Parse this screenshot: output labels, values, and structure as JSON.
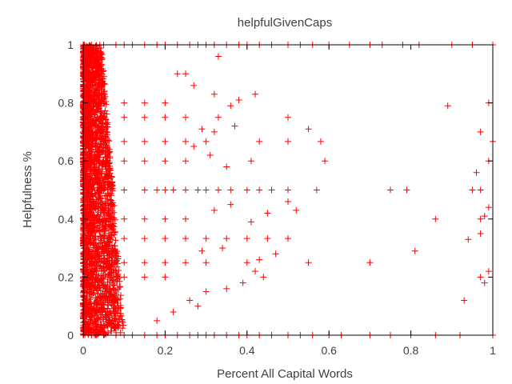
{
  "chart_data": {
    "type": "scatter",
    "title": "helpfulGivenCaps",
    "xlabel": "Percent All Capital Words",
    "ylabel": "Helpfulness %",
    "xlim": [
      0,
      1
    ],
    "ylim": [
      0,
      1
    ],
    "x_ticks": [
      0,
      0.2,
      0.4,
      0.6,
      0.8,
      1
    ],
    "y_ticks": [
      0,
      0.2,
      0.4,
      0.6,
      0.8,
      1
    ],
    "x_tick_labels": [
      "0",
      "0.2",
      "0.4",
      "0.6",
      "0.8",
      "1"
    ],
    "y_tick_labels": [
      "0",
      "0.2",
      "0.4",
      "0.6",
      "0.8",
      "1"
    ],
    "grid": false,
    "legend": "none",
    "marker": "plus",
    "color": "#ff0000",
    "series": [
      {
        "points": [
          [
            0.0,
            1.0
          ],
          [
            0.02,
            1.0
          ],
          [
            0.05,
            1.0
          ],
          [
            0.08,
            1.0
          ],
          [
            0.1,
            1.0
          ],
          [
            0.12,
            1.0
          ],
          [
            0.15,
            1.0
          ],
          [
            0.18,
            1.0
          ],
          [
            0.2,
            1.0
          ],
          [
            0.23,
            1.0
          ],
          [
            0.26,
            1.0
          ],
          [
            0.28,
            1.0
          ],
          [
            0.3,
            1.0
          ],
          [
            0.32,
            1.0
          ],
          [
            0.35,
            1.0
          ],
          [
            0.38,
            1.0
          ],
          [
            0.4,
            1.0
          ],
          [
            0.43,
            1.0
          ],
          [
            0.46,
            1.0
          ],
          [
            0.5,
            1.0
          ],
          [
            0.53,
            1.0
          ],
          [
            0.56,
            1.0
          ],
          [
            0.6,
            1.0
          ],
          [
            0.65,
            1.0
          ],
          [
            0.7,
            1.0
          ],
          [
            0.73,
            1.0
          ],
          [
            0.78,
            1.0
          ],
          [
            0.82,
            1.0
          ],
          [
            0.9,
            1.0
          ],
          [
            0.95,
            1.0
          ],
          [
            1.0,
            1.0
          ],
          [
            0.0,
            0.0
          ],
          [
            0.02,
            0.0
          ],
          [
            0.05,
            0.0
          ],
          [
            0.08,
            0.0
          ],
          [
            0.1,
            0.0
          ],
          [
            0.12,
            0.0
          ],
          [
            0.15,
            0.0
          ],
          [
            0.18,
            0.0
          ],
          [
            0.2,
            0.0
          ],
          [
            0.23,
            0.0
          ],
          [
            0.26,
            0.0
          ],
          [
            0.28,
            0.0
          ],
          [
            0.3,
            0.0
          ],
          [
            0.32,
            0.0
          ],
          [
            0.35,
            0.0
          ],
          [
            0.38,
            0.0
          ],
          [
            0.4,
            0.0
          ],
          [
            0.43,
            0.0
          ],
          [
            0.46,
            0.0
          ],
          [
            0.5,
            0.0
          ],
          [
            0.53,
            0.0
          ],
          [
            0.56,
            0.0
          ],
          [
            0.6,
            0.0
          ],
          [
            0.63,
            0.0
          ],
          [
            0.7,
            0.0
          ],
          [
            0.75,
            0.0
          ],
          [
            0.8,
            0.0
          ],
          [
            0.86,
            0.0
          ],
          [
            0.92,
            0.0
          ],
          [
            1.0,
            0.0
          ],
          [
            0.0,
            0.5
          ],
          [
            0.05,
            0.5
          ],
          [
            0.1,
            0.5
          ],
          [
            0.15,
            0.5
          ],
          [
            0.18,
            0.5
          ],
          [
            0.2,
            0.5
          ],
          [
            0.22,
            0.5
          ],
          [
            0.25,
            0.5
          ],
          [
            0.28,
            0.5
          ],
          [
            0.3,
            0.5
          ],
          [
            0.33,
            0.5
          ],
          [
            0.36,
            0.5
          ],
          [
            0.4,
            0.5
          ],
          [
            0.43,
            0.5
          ],
          [
            0.46,
            0.5
          ],
          [
            0.5,
            0.5
          ],
          [
            0.57,
            0.5
          ],
          [
            0.75,
            0.5
          ],
          [
            0.79,
            0.5
          ],
          [
            0.95,
            0.5
          ],
          [
            0.97,
            0.5
          ],
          [
            0.0,
            0.667
          ],
          [
            0.05,
            0.667
          ],
          [
            0.1,
            0.667
          ],
          [
            0.15,
            0.667
          ],
          [
            0.2,
            0.667
          ],
          [
            0.25,
            0.667
          ],
          [
            0.3,
            0.667
          ],
          [
            0.43,
            0.667
          ],
          [
            0.5,
            0.667
          ],
          [
            0.58,
            0.667
          ],
          [
            1.0,
            0.667
          ],
          [
            0.0,
            0.333
          ],
          [
            0.05,
            0.333
          ],
          [
            0.1,
            0.333
          ],
          [
            0.15,
            0.333
          ],
          [
            0.2,
            0.333
          ],
          [
            0.25,
            0.333
          ],
          [
            0.3,
            0.333
          ],
          [
            0.35,
            0.333
          ],
          [
            0.4,
            0.333
          ],
          [
            0.45,
            0.333
          ],
          [
            0.5,
            0.333
          ],
          [
            0.0,
            0.75
          ],
          [
            0.05,
            0.75
          ],
          [
            0.1,
            0.75
          ],
          [
            0.15,
            0.75
          ],
          [
            0.2,
            0.75
          ],
          [
            0.25,
            0.75
          ],
          [
            0.0,
            0.25
          ],
          [
            0.05,
            0.25
          ],
          [
            0.1,
            0.25
          ],
          [
            0.15,
            0.25
          ],
          [
            0.2,
            0.25
          ],
          [
            0.25,
            0.25
          ],
          [
            0.3,
            0.25
          ],
          [
            0.4,
            0.25
          ],
          [
            0.55,
            0.25
          ],
          [
            0.7,
            0.25
          ],
          [
            0.0,
            0.8
          ],
          [
            0.1,
            0.8
          ],
          [
            0.15,
            0.8
          ],
          [
            0.2,
            0.8
          ],
          [
            0.0,
            0.6
          ],
          [
            0.1,
            0.6
          ],
          [
            0.15,
            0.6
          ],
          [
            0.2,
            0.6
          ],
          [
            0.25,
            0.6
          ],
          [
            0.0,
            0.4
          ],
          [
            0.1,
            0.4
          ],
          [
            0.15,
            0.4
          ],
          [
            0.2,
            0.4
          ],
          [
            0.25,
            0.4
          ],
          [
            0.0,
            0.2
          ],
          [
            0.1,
            0.2
          ],
          [
            0.15,
            0.2
          ],
          [
            0.2,
            0.2
          ],
          [
            0.23,
            0.9
          ],
          [
            0.25,
            0.9
          ],
          [
            0.33,
            0.96
          ],
          [
            0.27,
            0.86
          ],
          [
            0.32,
            0.83
          ],
          [
            0.38,
            0.81
          ],
          [
            0.42,
            0.83
          ],
          [
            0.36,
            0.79
          ],
          [
            0.33,
            0.75
          ],
          [
            0.37,
            0.72
          ],
          [
            0.5,
            0.75
          ],
          [
            0.55,
            0.71
          ],
          [
            0.29,
            0.71
          ],
          [
            0.32,
            0.7
          ],
          [
            0.27,
            0.65
          ],
          [
            0.31,
            0.62
          ],
          [
            0.35,
            0.58
          ],
          [
            0.41,
            0.6
          ],
          [
            0.59,
            0.6
          ],
          [
            0.96,
            0.56
          ],
          [
            0.99,
            0.6
          ],
          [
            0.97,
            0.7
          ],
          [
            0.89,
            0.79
          ],
          [
            0.99,
            0.8
          ],
          [
            0.36,
            0.45
          ],
          [
            0.45,
            0.42
          ],
          [
            0.5,
            0.46
          ],
          [
            0.52,
            0.43
          ],
          [
            0.32,
            0.43
          ],
          [
            0.41,
            0.39
          ],
          [
            0.86,
            0.4
          ],
          [
            0.98,
            0.41
          ],
          [
            0.99,
            0.44
          ],
          [
            0.97,
            0.4
          ],
          [
            0.29,
            0.29
          ],
          [
            0.34,
            0.3
          ],
          [
            0.47,
            0.28
          ],
          [
            0.43,
            0.26
          ],
          [
            0.81,
            0.29
          ],
          [
            0.42,
            0.22
          ],
          [
            0.44,
            0.2
          ],
          [
            0.39,
            0.18
          ],
          [
            0.35,
            0.16
          ],
          [
            0.3,
            0.15
          ],
          [
            0.94,
            0.33
          ],
          [
            0.97,
            0.35
          ],
          [
            0.97,
            0.2
          ],
          [
            0.98,
            0.18
          ],
          [
            0.99,
            0.22
          ],
          [
            0.93,
            0.12
          ],
          [
            0.26,
            0.12
          ],
          [
            0.28,
            0.1
          ],
          [
            0.22,
            0.08
          ],
          [
            0.18,
            0.05
          ]
        ],
        "dense_region": {
          "x_range": [
            0,
            0.13
          ],
          "y_range": [
            0,
            1
          ],
          "taper_x_at_y_max": 0.045,
          "taper_x_at_y_min": 0.1
        }
      }
    ]
  }
}
